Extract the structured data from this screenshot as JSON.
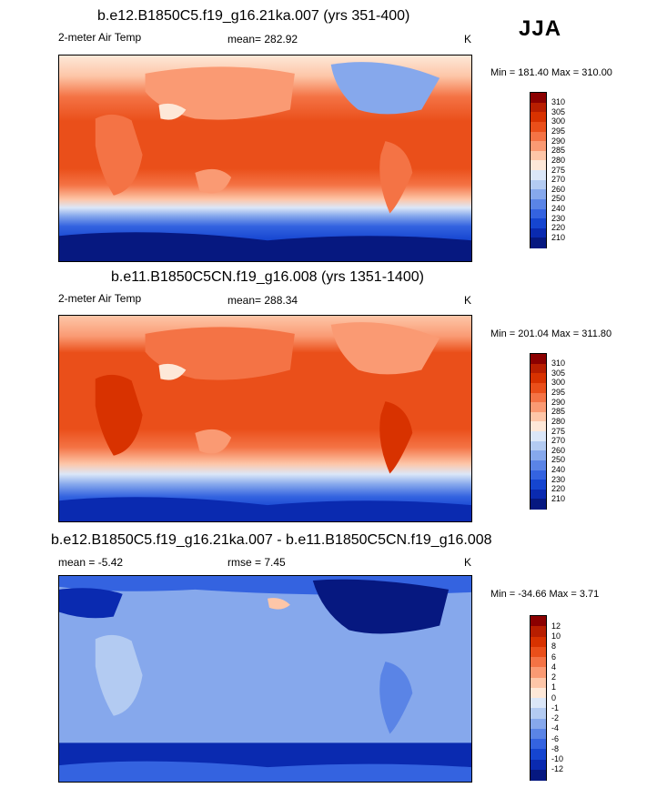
{
  "season": "JJA",
  "panels": [
    {
      "title": "b.e12.B1850C5.f19_g16.21ka.007 (yrs 351-400)",
      "variable": "2-meter Air Temp",
      "stat": "mean= 282.92",
      "units": "K",
      "minmax": "Min = 181.40 Max = 310.00"
    },
    {
      "title": "b.e11.B1850C5CN.f19_g16.008 (yrs 1351-1400)",
      "variable": "2-meter Air Temp",
      "stat": "mean= 288.34",
      "units": "K",
      "minmax": "Min = 201.04 Max = 311.80"
    },
    {
      "title": "b.e12.B1850C5.f19_g16.21ka.007 - b.e11.B1850C5CN.f19_g16.008",
      "stat": "mean =  -5.42",
      "stat2": "rmse =   7.45",
      "units": "K",
      "minmax": "Min = -34.66 Max =   3.71"
    }
  ],
  "chart_data": [
    {
      "type": "heatmap",
      "title": "b.e12.B1850C5.f19_g16.21ka.007 (yrs 351-400)",
      "variable": "2-meter Air Temp",
      "units": "K",
      "mean": 282.92,
      "min": 181.4,
      "max": 310.0,
      "colorbar_levels": [
        "310",
        "305",
        "300",
        "295",
        "290",
        "285",
        "280",
        "275",
        "270",
        "260",
        "250",
        "240",
        "230",
        "220",
        "210"
      ],
      "colors": [
        "#8b0000",
        "#b81e00",
        "#d83200",
        "#ea4f1a",
        "#f47345",
        "#fa9a73",
        "#fdc6a8",
        "#fde8d8",
        "#dbe7f8",
        "#b3cbf2",
        "#86a8ec",
        "#5a84e6",
        "#3463e0",
        "#1545d0",
        "#0a2ab0",
        "#061880"
      ]
    },
    {
      "type": "heatmap",
      "title": "b.e11.B1850C5CN.f19_g16.008 (yrs 1351-1400)",
      "variable": "2-meter Air Temp",
      "units": "K",
      "mean": 288.34,
      "min": 201.04,
      "max": 311.8,
      "colorbar_levels": [
        "310",
        "305",
        "300",
        "295",
        "290",
        "285",
        "280",
        "275",
        "270",
        "260",
        "250",
        "240",
        "230",
        "220",
        "210"
      ],
      "colors": [
        "#8b0000",
        "#b81e00",
        "#d83200",
        "#ea4f1a",
        "#f47345",
        "#fa9a73",
        "#fdc6a8",
        "#fde8d8",
        "#dbe7f8",
        "#b3cbf2",
        "#86a8ec",
        "#5a84e6",
        "#3463e0",
        "#1545d0",
        "#0a2ab0",
        "#061880"
      ]
    },
    {
      "type": "heatmap",
      "title": "b.e12.B1850C5.f19_g16.21ka.007 - b.e11.B1850C5CN.f19_g16.008",
      "units": "K",
      "mean": -5.42,
      "rmse": 7.45,
      "min": -34.66,
      "max": 3.71,
      "colorbar_levels": [
        "12",
        "10",
        "8",
        "6",
        "4",
        "2",
        "1",
        "0",
        "-1",
        "-2",
        "-4",
        "-6",
        "-8",
        "-10",
        "-12"
      ],
      "colors": [
        "#8b0000",
        "#b81e00",
        "#d83200",
        "#ea4f1a",
        "#f47345",
        "#fa9a73",
        "#fdc6a8",
        "#fde8d8",
        "#dbe7f8",
        "#b3cbf2",
        "#86a8ec",
        "#5a84e6",
        "#3463e0",
        "#1545d0",
        "#0a2ab0",
        "#061880"
      ]
    }
  ]
}
